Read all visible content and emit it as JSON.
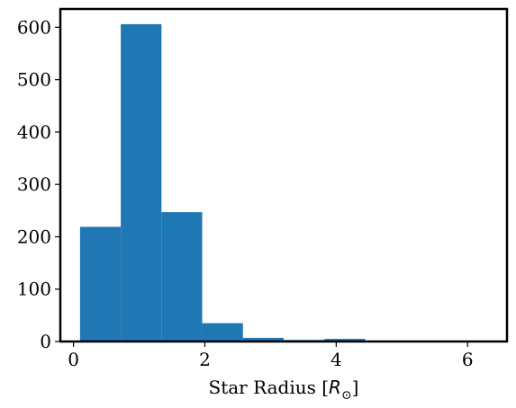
{
  "chart_data": {
    "type": "bar",
    "style": "histogram",
    "xlabel_text": "Star Radius [",
    "xlabel_symbol": "R",
    "xlabel_subscript": "⊙",
    "xlabel_close": "]",
    "ylabel": "",
    "title": "",
    "xlim": [
      -0.2,
      6.6
    ],
    "ylim": [
      0,
      635
    ],
    "bin_edges": [
      0.1,
      0.72,
      1.34,
      1.96,
      2.58,
      3.2,
      3.82,
      4.44,
      5.06,
      5.68,
      6.3
    ],
    "values": [
      219,
      606,
      247,
      35,
      7,
      3,
      5,
      1,
      1,
      1
    ],
    "xticks": [
      0,
      2,
      4,
      6
    ],
    "xtick_labels": [
      "0",
      "2",
      "4",
      "6"
    ],
    "yticks": [
      0,
      100,
      200,
      300,
      400,
      500,
      600
    ],
    "ytick_labels": [
      "0",
      "100",
      "200",
      "300",
      "400",
      "500",
      "600"
    ],
    "grid": false,
    "legend": "none",
    "bar_color": "#1f77b4"
  }
}
